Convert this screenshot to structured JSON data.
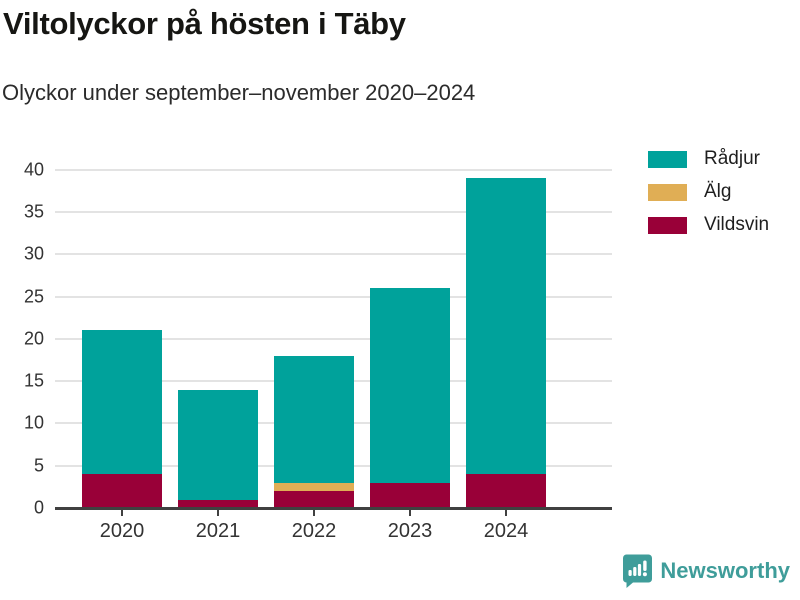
{
  "header": {
    "title": "Viltolyckor på hösten i Täby",
    "subtitle": "Olyckor under september–november 2020–2024"
  },
  "legend": {
    "position": "top-right",
    "items": [
      {
        "label": "Rådjur",
        "color": "#00a29b"
      },
      {
        "label": "Älg",
        "color": "#e0ae55"
      },
      {
        "label": "Vildsvin",
        "color": "#990038"
      }
    ]
  },
  "chart_data": {
    "type": "bar",
    "stacked": true,
    "title": "Viltolyckor på hösten i Täby",
    "subtitle": "Olyckor under september–november 2020–2024",
    "categories": [
      "2020",
      "2021",
      "2022",
      "2023",
      "2024"
    ],
    "series": [
      {
        "name": "Rådjur",
        "color": "#00a29b",
        "values": [
          17,
          13,
          15,
          23,
          35
        ]
      },
      {
        "name": "Älg",
        "color": "#e0ae55",
        "values": [
          0,
          0,
          1,
          0,
          0
        ]
      },
      {
        "name": "Vildsvin",
        "color": "#990038",
        "values": [
          4,
          1,
          2,
          3,
          4
        ]
      }
    ],
    "stack_order_bottom_to_top": [
      "Vildsvin",
      "Älg",
      "Rådjur"
    ],
    "totals": [
      21,
      14,
      18,
      26,
      39
    ],
    "xlabel": "",
    "ylabel": "",
    "ylim": [
      0,
      40
    ],
    "ytick_step": 5,
    "yticks": [
      0,
      5,
      10,
      15,
      20,
      25,
      30,
      35,
      40
    ],
    "grid": "horizontal",
    "legend_position": "top-right"
  },
  "colors": {
    "gridline": "#e3e3e3",
    "axis": "#404040",
    "brand_teal": "#3f9d9a"
  },
  "footer": {
    "brand": "Newsworthy"
  }
}
